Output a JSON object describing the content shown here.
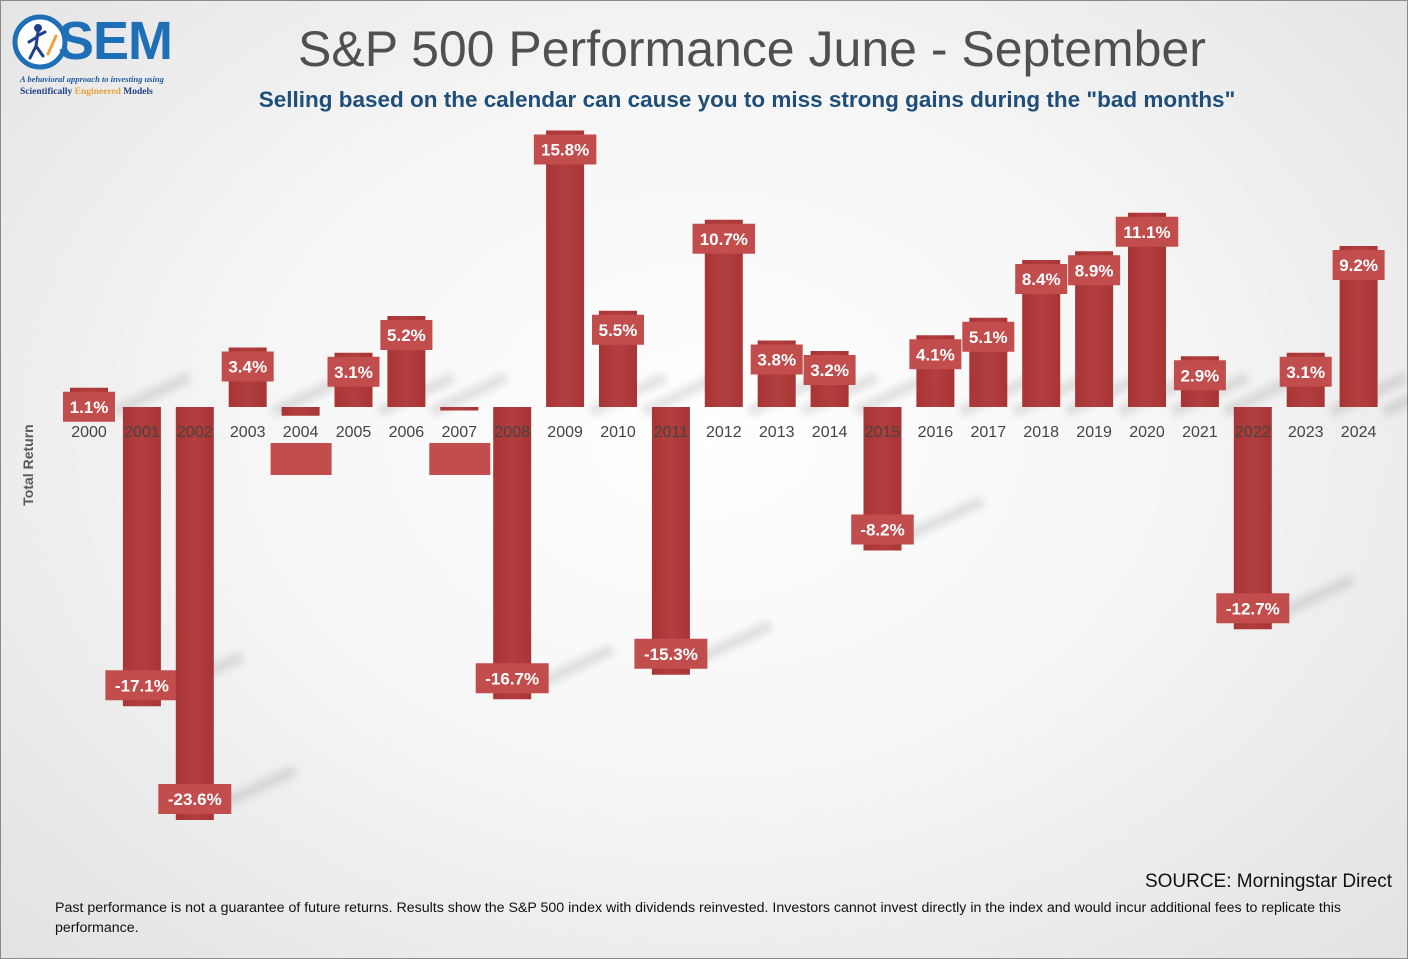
{
  "logo": {
    "wordmark": "SEM",
    "tagline": "A behavioral approach to investing using",
    "models_line": [
      "Scientifically ",
      "Engineered",
      " Models"
    ],
    "icon": "figure-climbing-icon"
  },
  "chart_data": {
    "type": "bar",
    "title": "S&P 500 Performance June - September",
    "subtitle": "Selling based on the calendar can cause you to miss strong gains during the \"bad months\"",
    "xlabel": "",
    "ylabel": "Total Return",
    "ylim": [
      -25,
      17
    ],
    "categories": [
      "2000",
      "2001",
      "2002",
      "2003",
      "2004",
      "2005",
      "2006",
      "2007",
      "2008",
      "2009",
      "2010",
      "2011",
      "2012",
      "2013",
      "2014",
      "2015",
      "2016",
      "2017",
      "2018",
      "2019",
      "2020",
      "2021",
      "2022",
      "2023",
      "2024"
    ],
    "values": [
      1.1,
      -17.1,
      -23.6,
      3.4,
      -0.5,
      3.1,
      5.2,
      -0.2,
      -16.7,
      15.8,
      5.5,
      -15.3,
      10.7,
      3.8,
      3.2,
      -8.2,
      4.1,
      5.1,
      8.4,
      8.9,
      11.1,
      2.9,
      -12.7,
      3.1,
      9.2
    ],
    "data_labels": [
      "1.1%",
      "-17.1%",
      "-23.6%",
      "3.4%",
      "",
      "3.1%",
      "5.2%",
      "",
      "-16.7%",
      "15.8%",
      "5.5%",
      "-15.3%",
      "10.7%",
      "3.8%",
      "3.2%",
      "-8.2%",
      "4.1%",
      "5.1%",
      "8.4%",
      "8.9%",
      "11.1%",
      "2.9%",
      "-12.7%",
      "3.1%",
      "9.2%"
    ],
    "bar_color": "#b23f3f",
    "label_color": "#ffffff",
    "grid": false,
    "legend": "none"
  },
  "source": "SOURCE:  Morningstar Direct",
  "disclaimer": "Past performance is not a guarantee of future returns. Results show the S&P 500 index with dividends reinvested. Investors cannot invest directly in the index and would incur additional fees to replicate this performance.",
  "colors": {
    "title": "#505050",
    "subtitle": "#1f4e79",
    "brand": "#1e6fb5"
  }
}
